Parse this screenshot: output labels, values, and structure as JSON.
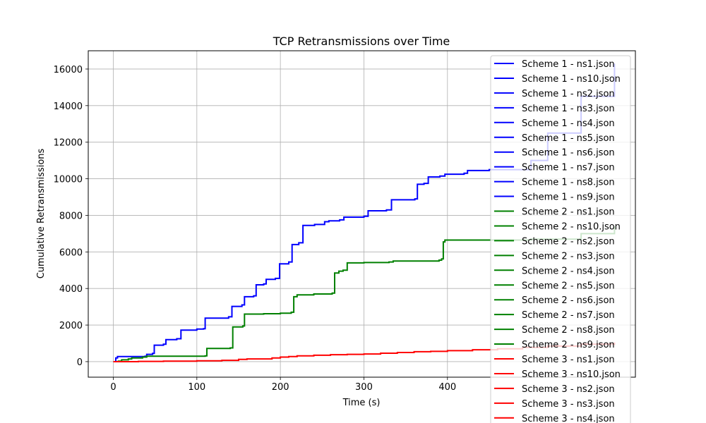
{
  "chart_data": {
    "type": "line",
    "title": "TCP Retransmissions over Time",
    "xlabel": "Time (s)",
    "ylabel": "Cumulative Retransmissions",
    "xlim": [
      -30,
      625
    ],
    "ylim": [
      -850,
      17000
    ],
    "xticks": [
      0,
      100,
      200,
      300,
      400
    ],
    "yticks": [
      0,
      2000,
      4000,
      6000,
      8000,
      10000,
      12000,
      14000,
      16000
    ],
    "grid": true,
    "legend_position": "top-right",
    "colors": {
      "Scheme 1": "#0000ff",
      "Scheme 2": "#008000",
      "Scheme 3": "#ff0000"
    },
    "legend_entries": [
      {
        "name": "Scheme 1 - ns1.json",
        "color": "#0000ff"
      },
      {
        "name": "Scheme 1 - ns10.json",
        "color": "#0000ff"
      },
      {
        "name": "Scheme 1 - ns2.json",
        "color": "#0000ff"
      },
      {
        "name": "Scheme 1 - ns3.json",
        "color": "#0000ff"
      },
      {
        "name": "Scheme 1 - ns4.json",
        "color": "#0000ff"
      },
      {
        "name": "Scheme 1 - ns5.json",
        "color": "#0000ff"
      },
      {
        "name": "Scheme 1 - ns6.json",
        "color": "#0000ff"
      },
      {
        "name": "Scheme 1 - ns7.json",
        "color": "#0000ff"
      },
      {
        "name": "Scheme 1 - ns8.json",
        "color": "#0000ff"
      },
      {
        "name": "Scheme 1 - ns9.json",
        "color": "#0000ff"
      },
      {
        "name": "Scheme 2 - ns1.json",
        "color": "#008000"
      },
      {
        "name": "Scheme 2 - ns10.json",
        "color": "#008000"
      },
      {
        "name": "Scheme 2 - ns2.json",
        "color": "#008000"
      },
      {
        "name": "Scheme 2 - ns3.json",
        "color": "#008000"
      },
      {
        "name": "Scheme 2 - ns4.json",
        "color": "#008000"
      },
      {
        "name": "Scheme 2 - ns5.json",
        "color": "#008000"
      },
      {
        "name": "Scheme 2 - ns6.json",
        "color": "#008000"
      },
      {
        "name": "Scheme 2 - ns7.json",
        "color": "#008000"
      },
      {
        "name": "Scheme 2 - ns8.json",
        "color": "#008000"
      },
      {
        "name": "Scheme 2 - ns9.json",
        "color": "#008000"
      },
      {
        "name": "Scheme 3 - ns1.json",
        "color": "#ff0000"
      },
      {
        "name": "Scheme 3 - ns10.json",
        "color": "#ff0000"
      },
      {
        "name": "Scheme 3 - ns2.json",
        "color": "#ff0000"
      },
      {
        "name": "Scheme 3 - ns3.json",
        "color": "#ff0000"
      },
      {
        "name": "Scheme 3 - ns4.json",
        "color": "#ff0000"
      }
    ],
    "series": [
      {
        "color": "#0000ff",
        "x": [
          0,
          3,
          5,
          38,
          40,
          47,
          49,
          60,
          63,
          76,
          81,
          100,
          108,
          110,
          138,
          142,
          154,
          157,
          168,
          171,
          180,
          183,
          194,
          199,
          210,
          214,
          222,
          227,
          241,
          253,
          258,
          271,
          276,
          300,
          305,
          327,
          333,
          361,
          364,
          372,
          377,
          391,
          397,
          420,
          424,
          450,
          500,
          520,
          560,
          600
        ],
        "y": [
          0,
          200,
          280,
          300,
          400,
          450,
          900,
          950,
          1200,
          1250,
          1720,
          1780,
          1800,
          2380,
          2450,
          3020,
          3100,
          3550,
          3600,
          4200,
          4250,
          4500,
          4550,
          5350,
          5450,
          6400,
          6500,
          7450,
          7500,
          7650,
          7700,
          7750,
          7900,
          7950,
          8250,
          8300,
          8850,
          8900,
          9700,
          9750,
          10100,
          10150,
          10250,
          10300,
          10450,
          10500,
          11000,
          12500,
          14500,
          16300
        ]
      },
      {
        "color": "#008000",
        "x": [
          0,
          6,
          10,
          18,
          22,
          35,
          40,
          100,
          110,
          112,
          140,
          143,
          155,
          157,
          180,
          200,
          213,
          216,
          220,
          240,
          262,
          265,
          270,
          275,
          280,
          300,
          330,
          335,
          390,
          393,
          395,
          397,
          420,
          500,
          560,
          600
        ],
        "y": [
          0,
          30,
          100,
          150,
          200,
          250,
          300,
          300,
          320,
          720,
          750,
          1900,
          1950,
          2600,
          2620,
          2650,
          2700,
          3550,
          3650,
          3700,
          3750,
          4850,
          4950,
          5000,
          5400,
          5420,
          5450,
          5500,
          5550,
          5620,
          6550,
          6650,
          6650,
          6700,
          7000,
          7400
        ]
      },
      {
        "color": "#ff0000",
        "x": [
          0,
          30,
          60,
          100,
          130,
          150,
          160,
          190,
          200,
          210,
          220,
          240,
          260,
          280,
          300,
          320,
          340,
          360,
          380,
          400,
          430,
          460,
          490,
          520,
          560,
          600
        ],
        "y": [
          0,
          15,
          30,
          50,
          70,
          120,
          150,
          200,
          250,
          280,
          320,
          350,
          380,
          400,
          420,
          460,
          500,
          540,
          560,
          600,
          650,
          700,
          780,
          850,
          950,
          1050
        ]
      }
    ]
  }
}
